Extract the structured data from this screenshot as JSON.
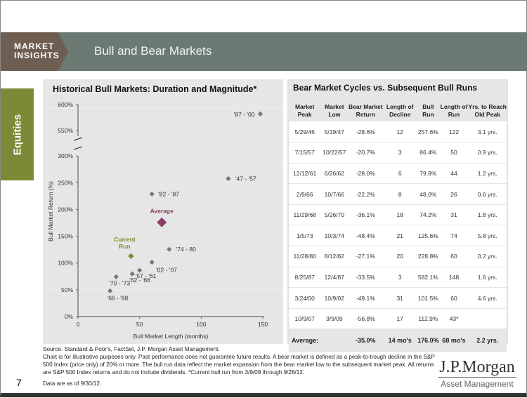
{
  "header": {
    "brand_line1": "MARKET",
    "brand_line2": "INSIGHTS",
    "title": "Bull and Bear Markets"
  },
  "section_tab": "Equities",
  "chart_data": {
    "type": "scatter",
    "title": "Historical Bull Markets: Duration and Magnitude*",
    "xlabel": "Bull Market Length (months)",
    "ylabel": "Bull Market Return (%)",
    "xlim": [
      0,
      150
    ],
    "ylim": [
      0,
      600
    ],
    "y_axis_break": [
      300,
      550
    ],
    "xticks": [
      "0",
      "50",
      "100",
      "150"
    ],
    "xtick_values": [
      0,
      50,
      100,
      150
    ],
    "yticks": [
      "0%",
      "50%",
      "100%",
      "150%",
      "200%",
      "250%",
      "300%",
      "550%",
      "600%"
    ],
    "ytick_values": [
      0,
      50,
      100,
      150,
      200,
      250,
      300,
      550,
      600
    ],
    "points": [
      {
        "label": "'47 - '57",
        "x": 122,
        "y": 257.6,
        "kind": "history"
      },
      {
        "label": "'57 - '61",
        "x": 50,
        "y": 86.4,
        "kind": "history"
      },
      {
        "label": "'62 - '66",
        "x": 44,
        "y": 79.8,
        "kind": "history"
      },
      {
        "label": "'66 - '68",
        "x": 26,
        "y": 48.0,
        "kind": "history"
      },
      {
        "label": "'70 - '73",
        "x": 31,
        "y": 74.2,
        "kind": "history"
      },
      {
        "label": "'74 - 80",
        "x": 74,
        "y": 125.6,
        "kind": "history"
      },
      {
        "label": "'82 - '87",
        "x": 60,
        "y": 228.8,
        "kind": "history"
      },
      {
        "label": "'87 - '00",
        "x": 148,
        "y": 582.1,
        "kind": "history"
      },
      {
        "label": "'02 - '07",
        "x": 60,
        "y": 101.5,
        "kind": "history"
      },
      {
        "label": "Current Run",
        "x": 43,
        "y": 112.9,
        "kind": "current"
      },
      {
        "label": "Average",
        "x": 68,
        "y": 176.0,
        "kind": "average"
      }
    ],
    "colors": {
      "history": "#707a78",
      "current": "#7f8f2e",
      "average": "#8c3f68"
    }
  },
  "table": {
    "title": "Bear Market Cycles vs. Subsequent Bull Runs",
    "columns": [
      "Market Peak",
      "Market Low",
      "Bear Market Return",
      "Length of Decline",
      "Bull Run",
      "Length of Run",
      "Yrs. to Reach Old Peak"
    ],
    "rows": [
      [
        "5/29/46",
        "5/19/47",
        "-28.6%",
        "12",
        "257.6%",
        "122",
        "3.1 yrs."
      ],
      [
        "7/15/57",
        "10/22/57",
        "-20.7%",
        "3",
        "86.4%",
        "50",
        "0.9 yrs."
      ],
      [
        "12/12/61",
        "6/26/62",
        "-28.0%",
        "6",
        "79.8%",
        "44",
        "1.2 yrs."
      ],
      [
        "2/9/66",
        "10/7/66",
        "-22.2%",
        "8",
        "48.0%",
        "26",
        "0.6 yrs."
      ],
      [
        "11/29/68",
        "5/26/70",
        "-36.1%",
        "18",
        "74.2%",
        "31",
        "1.8 yrs."
      ],
      [
        "1/5/73",
        "10/3/74",
        "-48.4%",
        "21",
        "125.6%",
        "74",
        "5.8 yrs."
      ],
      [
        "11/28/80",
        "8/12/82",
        "-27.1%",
        "20",
        "228.8%",
        "60",
        "0.2 yrs."
      ],
      [
        "8/25/87",
        "12/4/87",
        "-33.5%",
        "3",
        "582.1%",
        "148",
        "1.6 yrs."
      ],
      [
        "3/24/00",
        "10/9/02",
        "-49.1%",
        "31",
        "101.5%",
        "60",
        "4.6 yrs."
      ],
      [
        "10/9/07",
        "3/9/09",
        "-56.8%",
        "17",
        "112.9%",
        "43*",
        ""
      ]
    ],
    "average": [
      "Average:",
      "",
      "-35.0%",
      "14 mo's",
      "176.0%",
      "68 mo's",
      "2.2 yrs."
    ]
  },
  "footer": {
    "source": "Source: Standard & Poor's, FactSet, J.P. Morgan Asset Management.",
    "disclaimer": "Chart is for illustrative purposes only. Past performance does not guarantee future results. A bear market is defined as a peak-to-trough decline in the S&P 500 Index (price only) of 20% or more. The bull run data reflect the market expansion from the bear market low to the subsequent market peak. All returns are S&P 500 Index returns and do not include dividends. *Current bull run from 3/9/09 through 9/28/12.",
    "data_as_of": "Data are as of 9/30/12.",
    "page_number": "7",
    "logo_name": "J.P.Morgan",
    "logo_sub": "Asset Management"
  }
}
